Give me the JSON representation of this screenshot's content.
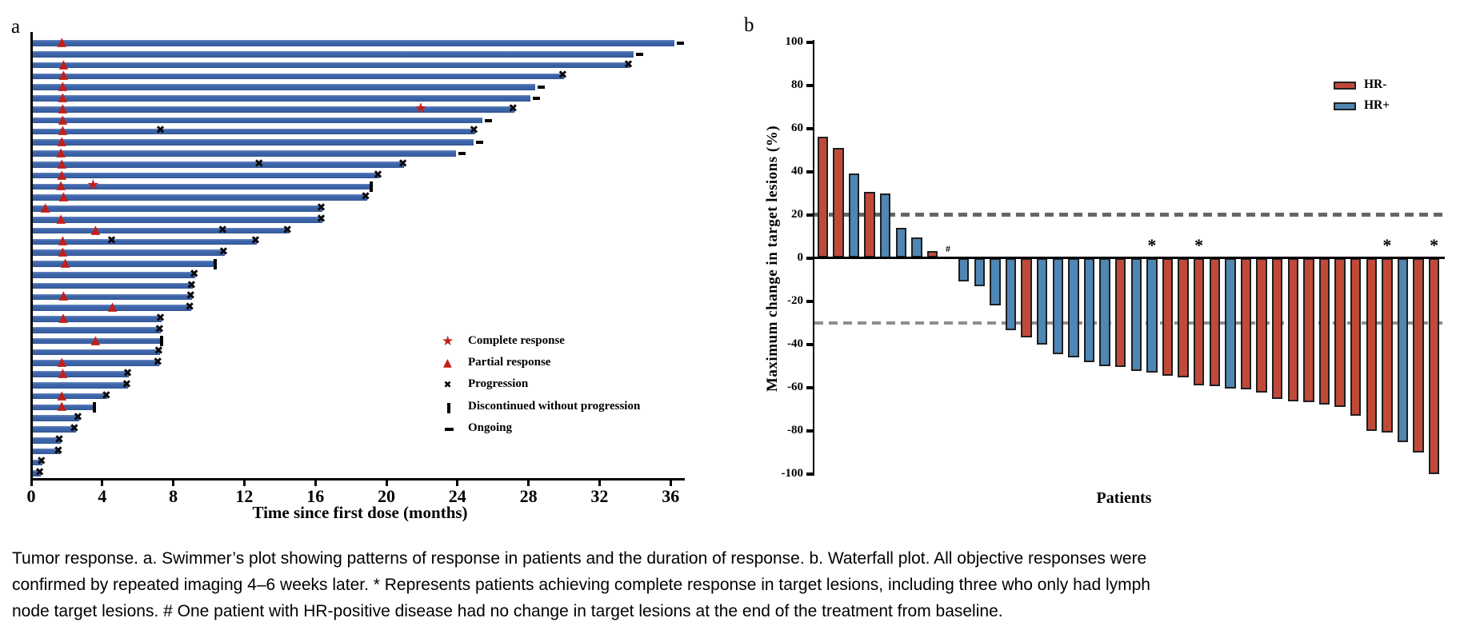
{
  "figure": {
    "panel_a_label": "a",
    "panel_b_label": "b"
  },
  "colors": {
    "swimmer_bar_blue": "#3b63a8",
    "response_marker_red": "#c0201c",
    "progression_black": "#0a0a0a",
    "hr_negative_red": "#c0493a",
    "hr_positive_blue": "#4e86b4",
    "ref_line_20_gray": "#666666",
    "ref_line_minus30_gray": "#8f8f8f"
  },
  "chart_data": [
    {
      "id": "swimmer_plot",
      "type": "bar",
      "orientation": "horizontal",
      "xlabel": "Time since first dose (months)",
      "x_ticks": [
        0,
        4,
        8,
        12,
        16,
        20,
        24,
        28,
        32,
        36
      ],
      "xlim": [
        0,
        36.8
      ],
      "grid": false,
      "legend_position": "inside-right",
      "legend": [
        {
          "marker": "star",
          "glyph": "★",
          "label": "Complete response"
        },
        {
          "marker": "triangle",
          "glyph": "▲",
          "label": "Partial response"
        },
        {
          "marker": "x",
          "glyph": "✖",
          "label": "Progression"
        },
        {
          "marker": "vbar",
          "glyph": "❚",
          "label": "Discontinued without progression"
        },
        {
          "marker": "dash",
          "glyph": "–",
          "label": "Ongoing"
        }
      ],
      "patients": [
        {
          "duration": 36.2,
          "triangle": 1.8,
          "end": "ongoing"
        },
        {
          "duration": 33.9,
          "end": "ongoing"
        },
        {
          "duration": 33.7,
          "triangle": 1.9,
          "end": "x"
        },
        {
          "duration": 30.0,
          "triangle": 1.9,
          "end": "x"
        },
        {
          "duration": 28.4,
          "triangle": 1.85,
          "end": "ongoing"
        },
        {
          "duration": 28.1,
          "triangle": 1.85,
          "end": "ongoing"
        },
        {
          "duration": 27.2,
          "triangle": 1.85,
          "star": 22.0,
          "end": "x"
        },
        {
          "duration": 25.4,
          "triangle": 1.85,
          "end": "ongoing"
        },
        {
          "duration": 25.0,
          "triangle": 1.85,
          "x_mid": [
            7.35
          ],
          "end": "x"
        },
        {
          "duration": 24.9,
          "triangle": 1.8,
          "end": "ongoing"
        },
        {
          "duration": 23.9,
          "triangle": 1.75,
          "end": "ongoing"
        },
        {
          "duration": 21.0,
          "triangle": 1.8,
          "x_mid": [
            12.9
          ],
          "end": "x"
        },
        {
          "duration": 19.6,
          "triangle": 1.8,
          "end": "x"
        },
        {
          "duration": 19.1,
          "triangle": 1.75,
          "star": 3.55,
          "end": "discontinued"
        },
        {
          "duration": 18.9,
          "triangle": 1.9,
          "end": "x"
        },
        {
          "duration": 16.4,
          "triangle": 0.87,
          "end": "x"
        },
        {
          "duration": 16.4,
          "triangle": 1.75,
          "end": "x"
        },
        {
          "duration": 14.5,
          "triangle": 3.7,
          "x_mid": [
            10.85
          ],
          "end": "x"
        },
        {
          "duration": 12.7,
          "triangle": 1.85,
          "x_mid": [
            4.6
          ],
          "end": "x"
        },
        {
          "duration": 10.9,
          "triangle": 1.85,
          "end": "x"
        },
        {
          "duration": 10.3,
          "triangle": 2.0,
          "end": "discontinued"
        },
        {
          "duration": 9.25,
          "end": "x"
        },
        {
          "duration": 9.1,
          "end": "x"
        },
        {
          "duration": 9.05,
          "triangle": 1.9,
          "end": "x"
        },
        {
          "duration": 9.0,
          "triangle": 4.65,
          "end": "x"
        },
        {
          "duration": 7.35,
          "triangle": 1.88,
          "end": "x"
        },
        {
          "duration": 7.3,
          "end": "x"
        },
        {
          "duration": 7.3,
          "triangle": 3.7,
          "end": "discontinued"
        },
        {
          "duration": 7.25,
          "end": "x"
        },
        {
          "duration": 7.2,
          "triangle": 1.8,
          "end": "x"
        },
        {
          "duration": 5.5,
          "triangle": 1.85,
          "end": "x"
        },
        {
          "duration": 5.45,
          "end": "x"
        },
        {
          "duration": 4.3,
          "triangle": 1.8,
          "end": "x"
        },
        {
          "duration": 3.5,
          "triangle": 1.8,
          "end": "discontinued"
        },
        {
          "duration": 2.7,
          "end": "x"
        },
        {
          "duration": 2.5,
          "end": "x"
        },
        {
          "duration": 1.65,
          "end": "x"
        },
        {
          "duration": 1.6,
          "end": "x"
        },
        {
          "duration": 0.65,
          "end": "x"
        },
        {
          "duration": 0.55,
          "end": "x"
        }
      ]
    },
    {
      "id": "waterfall_plot",
      "type": "bar",
      "orientation": "vertical",
      "ylabel": "Maximum change in target lesions (%)",
      "xlabel": "Patients",
      "ylim": [
        -100,
        100
      ],
      "y_ticks": [
        100,
        80,
        60,
        40,
        20,
        0,
        -20,
        -40,
        -60,
        -80,
        -100
      ],
      "reference_lines": [
        20,
        -30
      ],
      "grid": false,
      "legend_position": "top-right",
      "legend": [
        {
          "label": "HR-",
          "group": "HR-"
        },
        {
          "label": "HR+",
          "group": "HR+"
        }
      ],
      "bars": [
        {
          "value": 56,
          "group": "HR-"
        },
        {
          "value": 51,
          "group": "HR-"
        },
        {
          "value": 39,
          "group": "HR+"
        },
        {
          "value": 30.5,
          "group": "HR-"
        },
        {
          "value": 30,
          "group": "HR+"
        },
        {
          "value": 14,
          "group": "HR+"
        },
        {
          "value": 9.5,
          "group": "HR+"
        },
        {
          "value": 3,
          "group": "HR-"
        },
        {
          "value": 0,
          "group": "HR+",
          "annotation": "#"
        },
        {
          "value": -11,
          "group": "HR+"
        },
        {
          "value": -13,
          "group": "HR+"
        },
        {
          "value": -22,
          "group": "HR+"
        },
        {
          "value": -33.5,
          "group": "HR+"
        },
        {
          "value": -37,
          "group": "HR-"
        },
        {
          "value": -40,
          "group": "HR+"
        },
        {
          "value": -44.5,
          "group": "HR+"
        },
        {
          "value": -46,
          "group": "HR+"
        },
        {
          "value": -48.5,
          "group": "HR+"
        },
        {
          "value": -50,
          "group": "HR+"
        },
        {
          "value": -50.5,
          "group": "HR-"
        },
        {
          "value": -52.5,
          "group": "HR+"
        },
        {
          "value": -53,
          "group": "HR+",
          "annotation": "*"
        },
        {
          "value": -54.5,
          "group": "HR-"
        },
        {
          "value": -55.5,
          "group": "HR-"
        },
        {
          "value": -59,
          "group": "HR-",
          "annotation": "*"
        },
        {
          "value": -59.5,
          "group": "HR-"
        },
        {
          "value": -60.5,
          "group": "HR+"
        },
        {
          "value": -61,
          "group": "HR-"
        },
        {
          "value": -62.5,
          "group": "HR-"
        },
        {
          "value": -65.5,
          "group": "HR-"
        },
        {
          "value": -66.5,
          "group": "HR-"
        },
        {
          "value": -67,
          "group": "HR-"
        },
        {
          "value": -68,
          "group": "HR-"
        },
        {
          "value": -69,
          "group": "HR-"
        },
        {
          "value": -73,
          "group": "HR-"
        },
        {
          "value": -80,
          "group": "HR-"
        },
        {
          "value": -81,
          "group": "HR-",
          "annotation": "*"
        },
        {
          "value": -85.5,
          "group": "HR+"
        },
        {
          "value": -90,
          "group": "HR-"
        },
        {
          "value": -100,
          "group": "HR-",
          "annotation": "*"
        }
      ]
    }
  ],
  "caption": {
    "lines": [
      "Tumor response. a. Swimmer’s plot showing patterns of response in patients and the duration of response. b. Waterfall plot. All objective responses were",
      "confirmed by repeated imaging 4–6 weeks later. * Represents patients achieving complete response in target lesions, including three who only had lymph",
      "node target lesions. # One patient with HR-positive disease had no change in target lesions at the end of the treatment from baseline."
    ]
  }
}
